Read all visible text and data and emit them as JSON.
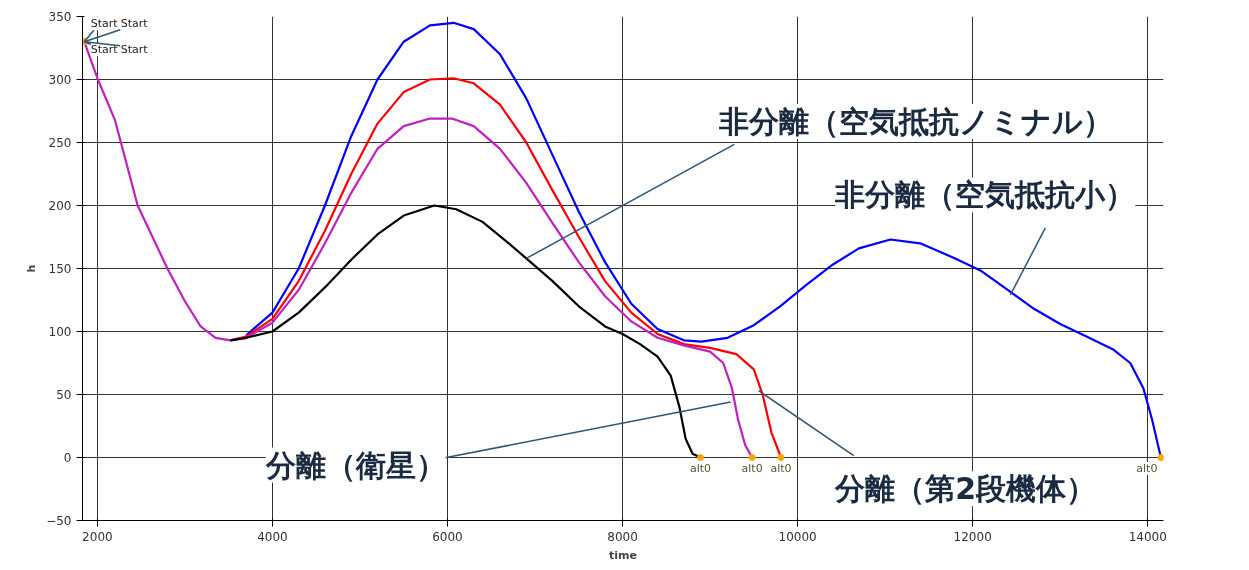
{
  "chart_data": {
    "type": "line",
    "xlabel": "time",
    "ylabel": "h",
    "xlim": [
      1830,
      14180
    ],
    "ylim": [
      -50,
      350
    ],
    "xticks": [
      2000,
      4000,
      6000,
      8000,
      10000,
      12000,
      14000
    ],
    "yticks": [
      -50,
      0,
      50,
      100,
      150,
      200,
      250,
      300,
      350
    ],
    "grid": true,
    "marker": "none",
    "line_style": "solid",
    "series": [
      {
        "color": "#0000ff",
        "x": [
          3700,
          4000,
          4300,
          4600,
          4900,
          5200,
          5500,
          5800,
          6070,
          6300,
          6600,
          6900,
          7200,
          7500,
          7800,
          8100,
          8400,
          8700,
          8900,
          9200,
          9500,
          9800,
          10100,
          10400,
          10700,
          11060,
          11400,
          11800,
          12100,
          12400,
          12700,
          13000,
          13300,
          13600,
          13800,
          13950,
          14050,
          14150
        ],
        "values": [
          97,
          115,
          150,
          200,
          255,
          300,
          330,
          343,
          345,
          340,
          320,
          285,
          240,
          195,
          155,
          122,
          102,
          93,
          92,
          95,
          105,
          120,
          137,
          153,
          166,
          173,
          170,
          158,
          148,
          133,
          118,
          106,
          96,
          86,
          75,
          55,
          30,
          0
        ]
      },
      {
        "color": "#ff0000",
        "x": [
          3520,
          3700,
          4000,
          4300,
          4600,
          4900,
          5200,
          5500,
          5800,
          6070,
          6300,
          6600,
          6900,
          7200,
          7500,
          7800,
          8100,
          8400,
          8700,
          9000,
          9300,
          9500,
          9600,
          9700,
          9810
        ],
        "values": [
          93,
          96,
          110,
          140,
          180,
          225,
          265,
          290,
          300,
          301,
          297,
          280,
          250,
          212,
          175,
          140,
          115,
          98,
          90,
          87,
          82,
          70,
          50,
          20,
          0
        ]
      },
      {
        "color": "#c020c0",
        "x": [
          1850,
          2000,
          2200,
          2460,
          2800,
          3000,
          3180,
          3350,
          3520,
          3700,
          4000,
          4300,
          4600,
          4900,
          5200,
          5500,
          5800,
          6050,
          6300,
          6600,
          6900,
          7200,
          7500,
          7800,
          8100,
          8400,
          8700,
          9000,
          9150,
          9250,
          9320,
          9400,
          9480
        ],
        "values": [
          330,
          301,
          268,
          200,
          150,
          124,
          104,
          95,
          93,
          95,
          107,
          133,
          170,
          210,
          245,
          263,
          269,
          269,
          263,
          245,
          218,
          186,
          155,
          128,
          108,
          95,
          89,
          84,
          75,
          55,
          30,
          10,
          0
        ]
      },
      {
        "color": "#000000",
        "x": [
          3520,
          3700,
          4000,
          4300,
          4600,
          4900,
          5200,
          5500,
          5850,
          6100,
          6400,
          6700,
          6900,
          7200,
          7500,
          7800,
          8000,
          8200,
          8400,
          8550,
          8650,
          8720,
          8800,
          8890
        ],
        "values": [
          93,
          95,
          100,
          115,
          135,
          157,
          177,
          192,
          200,
          197,
          187,
          170,
          158,
          140,
          120,
          104,
          98,
          90,
          80,
          65,
          40,
          15,
          3,
          0
        ]
      }
    ],
    "annotations": [
      {
        "text": "非分離（空気抵抗ノミナル）",
        "x": 6900,
        "y": 158
      },
      {
        "text": "非分離（空気抵抗小）",
        "x": 12430,
        "y": 129
      },
      {
        "text": "分離（衛星）",
        "x": 9235,
        "y": 44
      },
      {
        "text": "分離（第2段機体）",
        "x": 9555,
        "y": 53
      },
      {
        "text": "Start",
        "x": 1850,
        "y": 330
      },
      {
        "text": "Start",
        "x": 1850,
        "y": 330
      },
      {
        "text": "Start",
        "x": 1850,
        "y": 330
      },
      {
        "text": "Start",
        "x": 1850,
        "y": 330
      },
      {
        "text": "alt0",
        "x": 8890,
        "y": 0
      },
      {
        "text": "alt0",
        "x": 9480,
        "y": 0
      },
      {
        "text": "alt0",
        "x": 9810,
        "y": 0
      },
      {
        "text": "alt0",
        "x": 14150,
        "y": 0
      }
    ]
  }
}
